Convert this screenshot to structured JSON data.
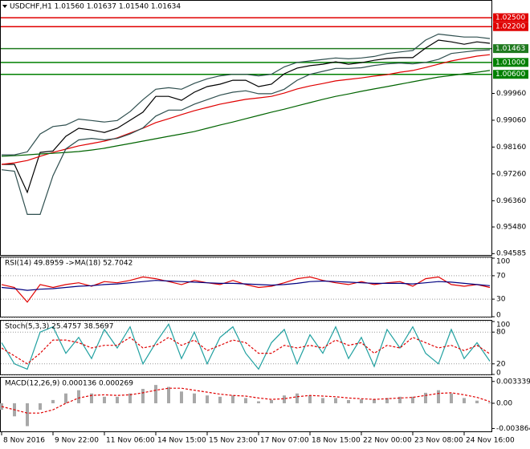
{
  "chart_data": [
    {
      "type": "line",
      "title": "USDCHF,H1  1.01560 1.01637 1.01540 1.01634",
      "ylim": [
        0.9454,
        1.0304
      ],
      "yticks": [
        {
          "value": 0.94585,
          "label": "0.94585"
        },
        {
          "value": 0.9548,
          "label": "0.95480"
        },
        {
          "value": 0.9636,
          "label": "0.96360"
        },
        {
          "value": 0.9726,
          "label": "0.97260"
        },
        {
          "value": 0.9816,
          "label": "0.98160"
        },
        {
          "value": 0.9906,
          "label": "0.99060"
        },
        {
          "value": 0.9996,
          "label": "0.99960"
        }
      ],
      "levels": [
        {
          "value": 1.025,
          "label": "1.02500",
          "color": "#e00000"
        },
        {
          "value": 1.022,
          "label": "1.02200",
          "color": "#e00000"
        },
        {
          "value": 1.01463,
          "label": "1.01463",
          "color": "#1f7a1f"
        },
        {
          "value": 1.01,
          "label": "1.01000",
          "color": "#008000"
        },
        {
          "value": 1.006,
          "label": "1.00600",
          "color": "#008000"
        }
      ],
      "series": [
        {
          "color": "#000000",
          "values": [
            0.9758,
            0.9758,
            0.9664,
            0.9798,
            0.9803,
            0.9852,
            0.9879,
            0.9873,
            0.9865,
            0.9879,
            0.9906,
            0.9933,
            0.9986,
            0.9986,
            0.9973,
            1.0,
            1.0019,
            1.0027,
            1.004,
            1.004,
            1.0019,
            1.0027,
            1.0062,
            1.0081,
            1.0089,
            1.0094,
            1.0102,
            1.0094,
            1.0099,
            1.0107,
            1.0113,
            1.0116,
            1.0116,
            1.0148,
            1.0175,
            1.0169,
            1.0161,
            1.0169,
            1.0164
          ]
        },
        {
          "color": "#e00000",
          "values": [
            0.9758,
            0.9763,
            0.9771,
            0.9785,
            0.9798,
            0.9809,
            0.982,
            0.9828,
            0.9836,
            0.9847,
            0.9863,
            0.9879,
            0.9898,
            0.9911,
            0.9925,
            0.9938,
            0.9949,
            0.996,
            0.9968,
            0.9976,
            0.9981,
            0.9986,
            0.9997,
            1.0011,
            1.0021,
            1.0029,
            1.0038,
            1.0043,
            1.0048,
            1.0054,
            1.0059,
            1.0067,
            1.0073,
            1.0083,
            1.0094,
            1.0105,
            1.0113,
            1.0121,
            1.0126
          ]
        },
        {
          "color": "#006400",
          "values": [
            0.9785,
            0.9787,
            0.979,
            0.9793,
            0.9795,
            0.9798,
            0.9801,
            0.9806,
            0.9812,
            0.982,
            0.9828,
            0.9836,
            0.9844,
            0.9852,
            0.986,
            0.9868,
            0.9879,
            0.989,
            0.99,
            0.9911,
            0.9922,
            0.9933,
            0.9943,
            0.9954,
            0.9965,
            0.9976,
            0.9986,
            0.9994,
            1.0003,
            1.0011,
            1.0019,
            1.0027,
            1.0035,
            1.0043,
            1.0051,
            1.0056,
            1.0062,
            1.0067,
            1.0073
          ]
        },
        {
          "color": "#2f4f4f",
          "values": [
            0.979,
            0.979,
            0.98,
            0.986,
            0.9885,
            0.989,
            0.991,
            0.9905,
            0.99,
            0.9905,
            0.9935,
            0.9975,
            1.001,
            1.0015,
            1.001,
            1.003,
            1.0045,
            1.0055,
            1.006,
            1.006,
            1.0055,
            1.006,
            1.0085,
            1.01,
            1.0105,
            1.011,
            1.0115,
            1.0112,
            1.0115,
            1.012,
            1.013,
            1.0135,
            1.014,
            1.0175,
            1.0195,
            1.019,
            1.0185,
            1.0185,
            1.018
          ]
        },
        {
          "color": "#2f4f4f",
          "values": [
            0.974,
            0.9735,
            0.959,
            0.959,
            0.972,
            0.981,
            0.984,
            0.9845,
            0.984,
            0.9845,
            0.986,
            0.988,
            0.992,
            0.994,
            0.994,
            0.996,
            0.9975,
            0.999,
            1.0,
            1.0005,
            0.9995,
            0.9995,
            1.001,
            1.004,
            1.006,
            1.007,
            1.008,
            1.008,
            1.0082,
            1.009,
            1.0095,
            1.0098,
            1.0095,
            1.01,
            1.011,
            1.013,
            1.0135,
            1.014,
            1.0142
          ]
        }
      ]
    },
    {
      "type": "line",
      "title": "RSI(14) 49.8959  ->MA(18) 52.7042",
      "ylim": [
        0,
        100
      ],
      "yticks": [
        100,
        70,
        30,
        0
      ],
      "grid": true,
      "series": [
        {
          "color": "#e00000",
          "values": [
            55,
            50,
            25,
            55,
            50,
            55,
            58,
            52,
            60,
            58,
            62,
            68,
            65,
            60,
            55,
            62,
            58,
            55,
            62,
            55,
            50,
            52,
            58,
            65,
            68,
            62,
            58,
            55,
            60,
            55,
            58,
            60,
            52,
            65,
            68,
            55,
            52,
            55,
            50
          ]
        },
        {
          "color": "#000080",
          "values": [
            50,
            48,
            45,
            47,
            48,
            50,
            52,
            53,
            55,
            56,
            58,
            60,
            62,
            61,
            60,
            59,
            58,
            57,
            57,
            56,
            55,
            54,
            55,
            57,
            60,
            61,
            60,
            59,
            58,
            57,
            57,
            57,
            56,
            58,
            60,
            59,
            57,
            55,
            53
          ]
        }
      ]
    },
    {
      "type": "line",
      "title": "Stoch(5,3,3) 25.4757 38.5697",
      "ylim": [
        0,
        100
      ],
      "yticks": [
        100,
        80,
        20,
        0
      ],
      "grid": true,
      "series": [
        {
          "color": "#20a0a0",
          "values": [
            60,
            20,
            10,
            80,
            90,
            40,
            70,
            30,
            85,
            50,
            90,
            20,
            60,
            95,
            30,
            80,
            20,
            70,
            90,
            40,
            10,
            60,
            85,
            20,
            75,
            40,
            90,
            30,
            70,
            15,
            85,
            50,
            90,
            40,
            20,
            85,
            30,
            60,
            25
          ]
        },
        {
          "color": "#e00000",
          "dash": true,
          "values": [
            50,
            35,
            20,
            40,
            65,
            65,
            60,
            50,
            55,
            55,
            70,
            50,
            55,
            70,
            55,
            65,
            45,
            55,
            65,
            60,
            40,
            40,
            55,
            50,
            55,
            50,
            65,
            55,
            60,
            40,
            55,
            50,
            70,
            60,
            50,
            55,
            45,
            55,
            39
          ]
        }
      ]
    },
    {
      "type": "bar",
      "title": "MACD(12,26,9) 0.000136 0.000269",
      "ylim": [
        -0.0043,
        0.0038
      ],
      "yticks": [
        0.003339,
        {
          "value": 0,
          "label": "0.00"
        },
        -0.003864
      ],
      "series": [
        {
          "color": "#a8a8a8",
          "values": [
            -0.001,
            -0.002,
            -0.0035,
            -0.001,
            0.0005,
            0.0015,
            0.002,
            0.0015,
            0.001,
            0.001,
            0.0015,
            0.0022,
            0.0028,
            0.0025,
            0.0018,
            0.0015,
            0.0012,
            0.001,
            0.0012,
            0.0008,
            0.0003,
            0.0005,
            0.0012,
            0.0015,
            0.0012,
            0.0008,
            0.0008,
            0.0005,
            0.0006,
            0.0006,
            0.0008,
            0.001,
            0.001,
            0.0016,
            0.002,
            0.0015,
            0.0008,
            0.0004,
            0.000136
          ]
        },
        {
          "type": "line",
          "color": "#e00000",
          "dash": true,
          "values": [
            -0.0005,
            -0.001,
            -0.0015,
            -0.0015,
            -0.001,
            0,
            0.0008,
            0.0012,
            0.0013,
            0.0012,
            0.0013,
            0.0016,
            0.002,
            0.0023,
            0.0023,
            0.002,
            0.0017,
            0.0014,
            0.0012,
            0.0011,
            0.0008,
            0.0006,
            0.0007,
            0.001,
            0.0012,
            0.0011,
            0.001,
            0.0008,
            0.0007,
            0.0006,
            0.0007,
            0.0008,
            0.0009,
            0.0012,
            0.0015,
            0.0016,
            0.0013,
            0.0009,
            0.000269
          ]
        }
      ],
      "categories": [
        "8 Nov 2016",
        null,
        null,
        null,
        "9 Nov 22:00",
        null,
        null,
        null,
        "11 Nov 06:00",
        null,
        null,
        null,
        "14 Nov 15:00",
        null,
        null,
        null,
        "15 Nov 23:00",
        null,
        null,
        null,
        "17 Nov 07:00",
        null,
        null,
        null,
        "18 Nov 15:00",
        null,
        null,
        null,
        "22 Nov 00:00",
        null,
        null,
        null,
        "23 Nov 08:00",
        null,
        null,
        null,
        "24 Nov 16:00",
        null,
        null
      ]
    }
  ]
}
